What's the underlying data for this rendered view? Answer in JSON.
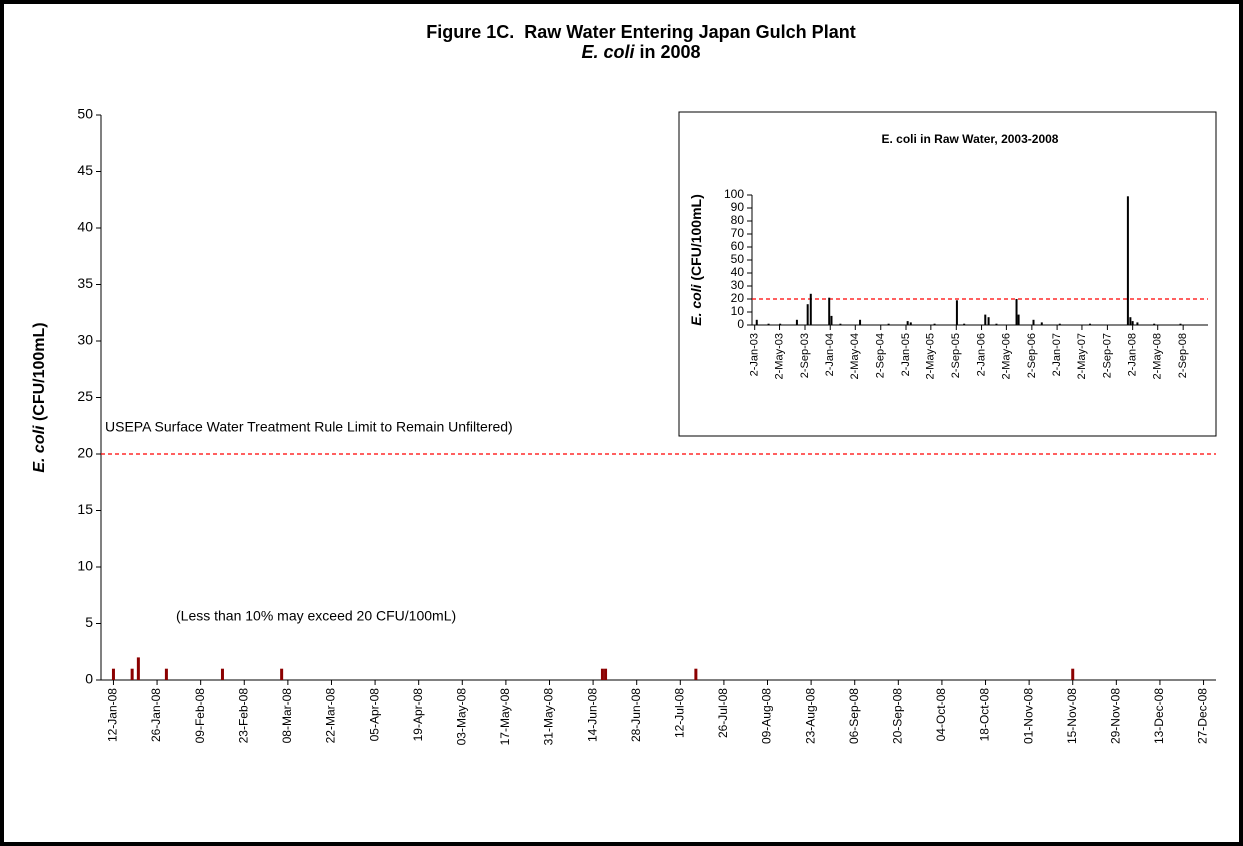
{
  "chart_data": [
    {
      "type": "bar",
      "title": "Figure 1C.  Raw Water Entering Japan Gulch Plant",
      "subtitle": {
        "italic": "E. coli",
        "rest": " in 2008"
      },
      "y_label": {
        "italic": "E. coli",
        "rest": " (CFU/100mL)"
      },
      "x": [
        "2008-01-12",
        "2008-01-18",
        "2008-01-20",
        "2008-01-29",
        "2008-02-16",
        "2008-03-06",
        "2008-06-17",
        "2008-06-18",
        "2008-07-17",
        "2008-11-15"
      ],
      "values": [
        1,
        1,
        2,
        1,
        1,
        1,
        1,
        1,
        1,
        1
      ],
      "color": "#8b0000",
      "xlim": [
        "2008-01-08",
        "2008-12-31"
      ],
      "xticks": [
        {
          "value": "2008-01-12",
          "label": "12-Jan-08"
        },
        {
          "value": "2008-01-26",
          "label": "26-Jan-08"
        },
        {
          "value": "2008-02-09",
          "label": "09-Feb-08"
        },
        {
          "value": "2008-02-23",
          "label": "23-Feb-08"
        },
        {
          "value": "2008-03-08",
          "label": "08-Mar-08"
        },
        {
          "value": "2008-03-22",
          "label": "22-Mar-08"
        },
        {
          "value": "2008-04-05",
          "label": "05-Apr-08"
        },
        {
          "value": "2008-04-19",
          "label": "19-Apr-08"
        },
        {
          "value": "2008-05-03",
          "label": "03-May-08"
        },
        {
          "value": "2008-05-17",
          "label": "17-May-08"
        },
        {
          "value": "2008-05-31",
          "label": "31-May-08"
        },
        {
          "value": "2008-06-14",
          "label": "14-Jun-08"
        },
        {
          "value": "2008-06-28",
          "label": "28-Jun-08"
        },
        {
          "value": "2008-07-12",
          "label": "12-Jul-08"
        },
        {
          "value": "2008-07-26",
          "label": "26-Jul-08"
        },
        {
          "value": "2008-08-09",
          "label": "09-Aug-08"
        },
        {
          "value": "2008-08-23",
          "label": "23-Aug-08"
        },
        {
          "value": "2008-09-06",
          "label": "06-Sep-08"
        },
        {
          "value": "2008-09-20",
          "label": "20-Sep-08"
        },
        {
          "value": "2008-10-04",
          "label": "04-Oct-08"
        },
        {
          "value": "2008-10-18",
          "label": "18-Oct-08"
        },
        {
          "value": "2008-11-01",
          "label": "01-Nov-08"
        },
        {
          "value": "2008-11-15",
          "label": "15-Nov-08"
        },
        {
          "value": "2008-11-29",
          "label": "29-Nov-08"
        },
        {
          "value": "2008-12-13",
          "label": "13-Dec-08"
        },
        {
          "value": "2008-12-27",
          "label": "27-Dec-08"
        }
      ],
      "ylim": [
        0,
        50
      ],
      "yticks": [
        0,
        5,
        10,
        15,
        20,
        25,
        30,
        35,
        40,
        45,
        50
      ],
      "reference_line": {
        "value": 20,
        "label": "USEPA Surface Water Treatment Rule Limit to Remain Unfiltered)",
        "color": "#ff0000"
      },
      "annotations": [
        "(Less than 10% may exceed 20 CFU/100mL)"
      ]
    },
    {
      "type": "bar",
      "title": "E. coli in Raw Water, 2003-2008",
      "y_label": {
        "italic": "E. coli",
        "rest": " (CFU/100mL)"
      },
      "x": [
        "2003-01-12",
        "2003-03-10",
        "2003-05-05",
        "2003-07-25",
        "2003-09-15",
        "2003-09-30",
        "2003-12-28",
        "2004-01-08",
        "2004-02-20",
        "2004-05-25",
        "2004-10-10",
        "2005-01-10",
        "2005-01-25",
        "2005-05-20",
        "2005-09-05",
        "2005-10-10",
        "2006-01-20",
        "2006-02-05",
        "2006-03-15",
        "2006-06-20",
        "2006-06-30",
        "2006-09-10",
        "2006-10-20",
        "2007-01-15",
        "2007-06-10",
        "2007-12-10",
        "2007-12-22",
        "2008-01-02",
        "2008-01-25",
        "2008-04-15",
        "2008-08-20"
      ],
      "values": [
        4,
        1,
        1,
        4,
        16,
        24,
        21,
        7,
        1,
        4,
        1,
        3,
        2,
        1,
        19,
        1,
        8,
        6,
        1,
        20,
        8,
        4,
        2,
        1,
        1,
        99,
        6,
        3,
        2,
        1,
        1
      ],
      "color": "#000000",
      "xlim": [
        "2002-12-20",
        "2008-12-31"
      ],
      "xticks": [
        {
          "value": "2003-01-02",
          "label": "2-Jan-03"
        },
        {
          "value": "2003-05-02",
          "label": "2-May-03"
        },
        {
          "value": "2003-09-02",
          "label": "2-Sep-03"
        },
        {
          "value": "2004-01-02",
          "label": "2-Jan-04"
        },
        {
          "value": "2004-05-02",
          "label": "2-May-04"
        },
        {
          "value": "2004-09-02",
          "label": "2-Sep-04"
        },
        {
          "value": "2005-01-02",
          "label": "2-Jan-05"
        },
        {
          "value": "2005-05-02",
          "label": "2-May-05"
        },
        {
          "value": "2005-09-02",
          "label": "2-Sep-05"
        },
        {
          "value": "2006-01-02",
          "label": "2-Jan-06"
        },
        {
          "value": "2006-05-02",
          "label": "2-May-06"
        },
        {
          "value": "2006-09-02",
          "label": "2-Sep-06"
        },
        {
          "value": "2007-01-02",
          "label": "2-Jan-07"
        },
        {
          "value": "2007-05-02",
          "label": "2-May-07"
        },
        {
          "value": "2007-09-02",
          "label": "2-Sep-07"
        },
        {
          "value": "2008-01-02",
          "label": "2-Jan-08"
        },
        {
          "value": "2008-05-02",
          "label": "2-May-08"
        },
        {
          "value": "2008-09-02",
          "label": "2-Sep-08"
        }
      ],
      "ylim": [
        0,
        100
      ],
      "yticks": [
        0,
        10,
        20,
        30,
        40,
        50,
        60,
        70,
        80,
        90,
        100
      ],
      "reference_line": {
        "value": 20,
        "color": "#ff0000"
      }
    }
  ]
}
